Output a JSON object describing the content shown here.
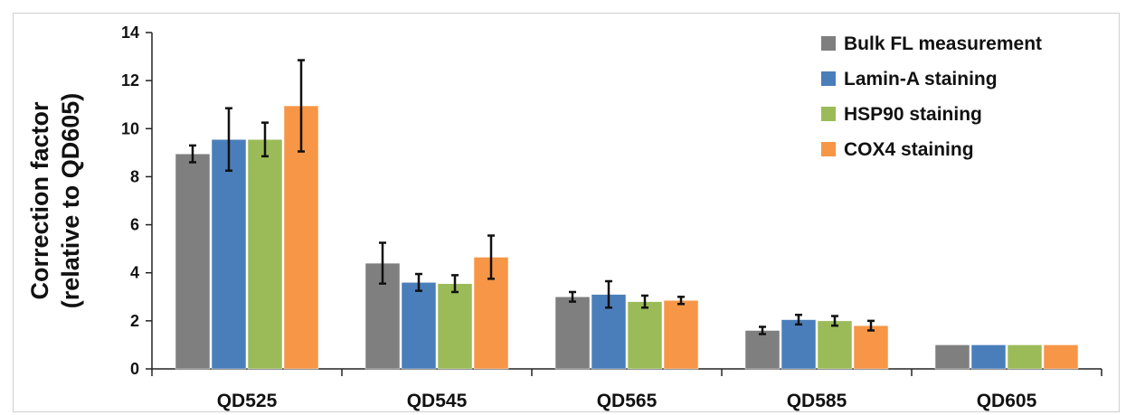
{
  "chart_data": {
    "type": "bar",
    "title": "",
    "xlabel": "",
    "ylabel_lines": [
      "Correction factor",
      "(relative to QD605)"
    ],
    "ylim": [
      0,
      14
    ],
    "yticks": [
      0,
      2,
      4,
      6,
      8,
      10,
      12,
      14
    ],
    "grid": false,
    "legend_position": "top-right",
    "categories": [
      "QD525",
      "QD545",
      "QD565",
      "QD585",
      "QD605"
    ],
    "series": [
      {
        "name": "Bulk FL measurement",
        "color": "#7f7f7f",
        "values": [
          8.95,
          4.4,
          3.0,
          1.6,
          1.0
        ],
        "errors": [
          0.35,
          0.85,
          0.2,
          0.15,
          0
        ]
      },
      {
        "name": "Lamin-A staining",
        "color": "#4a7ebb",
        "values": [
          9.55,
          3.6,
          3.1,
          2.05,
          1.0
        ],
        "errors": [
          1.3,
          0.35,
          0.55,
          0.2,
          0
        ]
      },
      {
        "name": "HSP90 staining",
        "color": "#9bbb59",
        "values": [
          9.55,
          3.55,
          2.8,
          2.0,
          1.0
        ],
        "errors": [
          0.7,
          0.35,
          0.25,
          0.2,
          0
        ]
      },
      {
        "name": "COX4 staining",
        "color": "#f79646",
        "values": [
          10.95,
          4.65,
          2.85,
          1.8,
          1.0
        ],
        "errors": [
          1.9,
          0.9,
          0.15,
          0.2,
          0
        ]
      }
    ]
  }
}
